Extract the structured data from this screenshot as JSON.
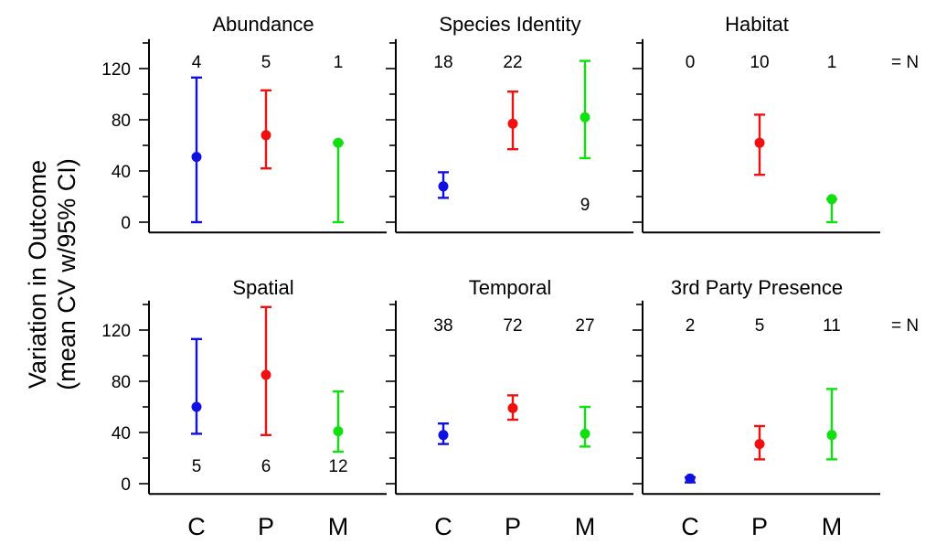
{
  "chart_data": {
    "type": "scatter",
    "ylabel_lines": [
      "Variation in Outcome",
      "(mean CV w/95% CI)"
    ],
    "categories": [
      "C",
      "P",
      "M"
    ],
    "ylim": [
      -8,
      143
    ],
    "yticks": [
      "0",
      "40",
      "80",
      "120"
    ],
    "grid": false,
    "n_note": "= N",
    "colors": {
      "C": "#1010e0",
      "P": "#f01010",
      "M": "#10e010"
    },
    "panels": [
      {
        "title": "Abundance",
        "points": [
          {
            "category": "C",
            "mean": 51,
            "ci_low": 0,
            "ci_high": 113,
            "n": "4",
            "n_pos": "top"
          },
          {
            "category": "P",
            "mean": 68,
            "ci_low": 42,
            "ci_high": 103,
            "n": "5",
            "n_pos": "top"
          },
          {
            "category": "M",
            "mean": 62,
            "ci_low": 0,
            "ci_high": 62,
            "n": "1",
            "n_pos": "top"
          }
        ]
      },
      {
        "title": "Species Identity",
        "points": [
          {
            "category": "C",
            "mean": 28,
            "ci_low": 19,
            "ci_high": 39,
            "n": "18",
            "n_pos": "top"
          },
          {
            "category": "P",
            "mean": 77,
            "ci_low": 57,
            "ci_high": 102,
            "n": "22",
            "n_pos": "top"
          },
          {
            "category": "M",
            "mean": 82,
            "ci_low": 50,
            "ci_high": 126,
            "n": "9",
            "n_pos": "bottom"
          }
        ]
      },
      {
        "title": "Habitat",
        "show_n_note": true,
        "points": [
          {
            "category": "C",
            "mean": null,
            "ci_low": null,
            "ci_high": null,
            "n": "0",
            "n_pos": "top"
          },
          {
            "category": "P",
            "mean": 62,
            "ci_low": 37,
            "ci_high": 84,
            "n": "10",
            "n_pos": "top"
          },
          {
            "category": "M",
            "mean": 18,
            "ci_low": 0,
            "ci_high": 18,
            "n": "1",
            "n_pos": "top"
          }
        ]
      },
      {
        "title": "Spatial",
        "points": [
          {
            "category": "C",
            "mean": 60,
            "ci_low": 39,
            "ci_high": 113,
            "n": "5",
            "n_pos": "bottom"
          },
          {
            "category": "P",
            "mean": 85,
            "ci_low": 38,
            "ci_high": 138,
            "n": "6",
            "n_pos": "bottom"
          },
          {
            "category": "M",
            "mean": 41,
            "ci_low": 25,
            "ci_high": 72,
            "n": "12",
            "n_pos": "bottom"
          }
        ]
      },
      {
        "title": "Temporal",
        "points": [
          {
            "category": "C",
            "mean": 38,
            "ci_low": 31,
            "ci_high": 47,
            "n": "38",
            "n_pos": "top"
          },
          {
            "category": "P",
            "mean": 59,
            "ci_low": 50,
            "ci_high": 69,
            "n": "72",
            "n_pos": "top"
          },
          {
            "category": "M",
            "mean": 39,
            "ci_low": 29,
            "ci_high": 60,
            "n": "27",
            "n_pos": "top"
          }
        ]
      },
      {
        "title": "3rd Party Presence",
        "show_n_note": true,
        "points": [
          {
            "category": "C",
            "mean": 4,
            "ci_low": 1,
            "ci_high": 5,
            "n": "2",
            "n_pos": "top"
          },
          {
            "category": "P",
            "mean": 31,
            "ci_low": 19,
            "ci_high": 45,
            "n": "5",
            "n_pos": "top"
          },
          {
            "category": "M",
            "mean": 38,
            "ci_low": 19,
            "ci_high": 74,
            "n": "11",
            "n_pos": "top"
          }
        ]
      }
    ]
  }
}
